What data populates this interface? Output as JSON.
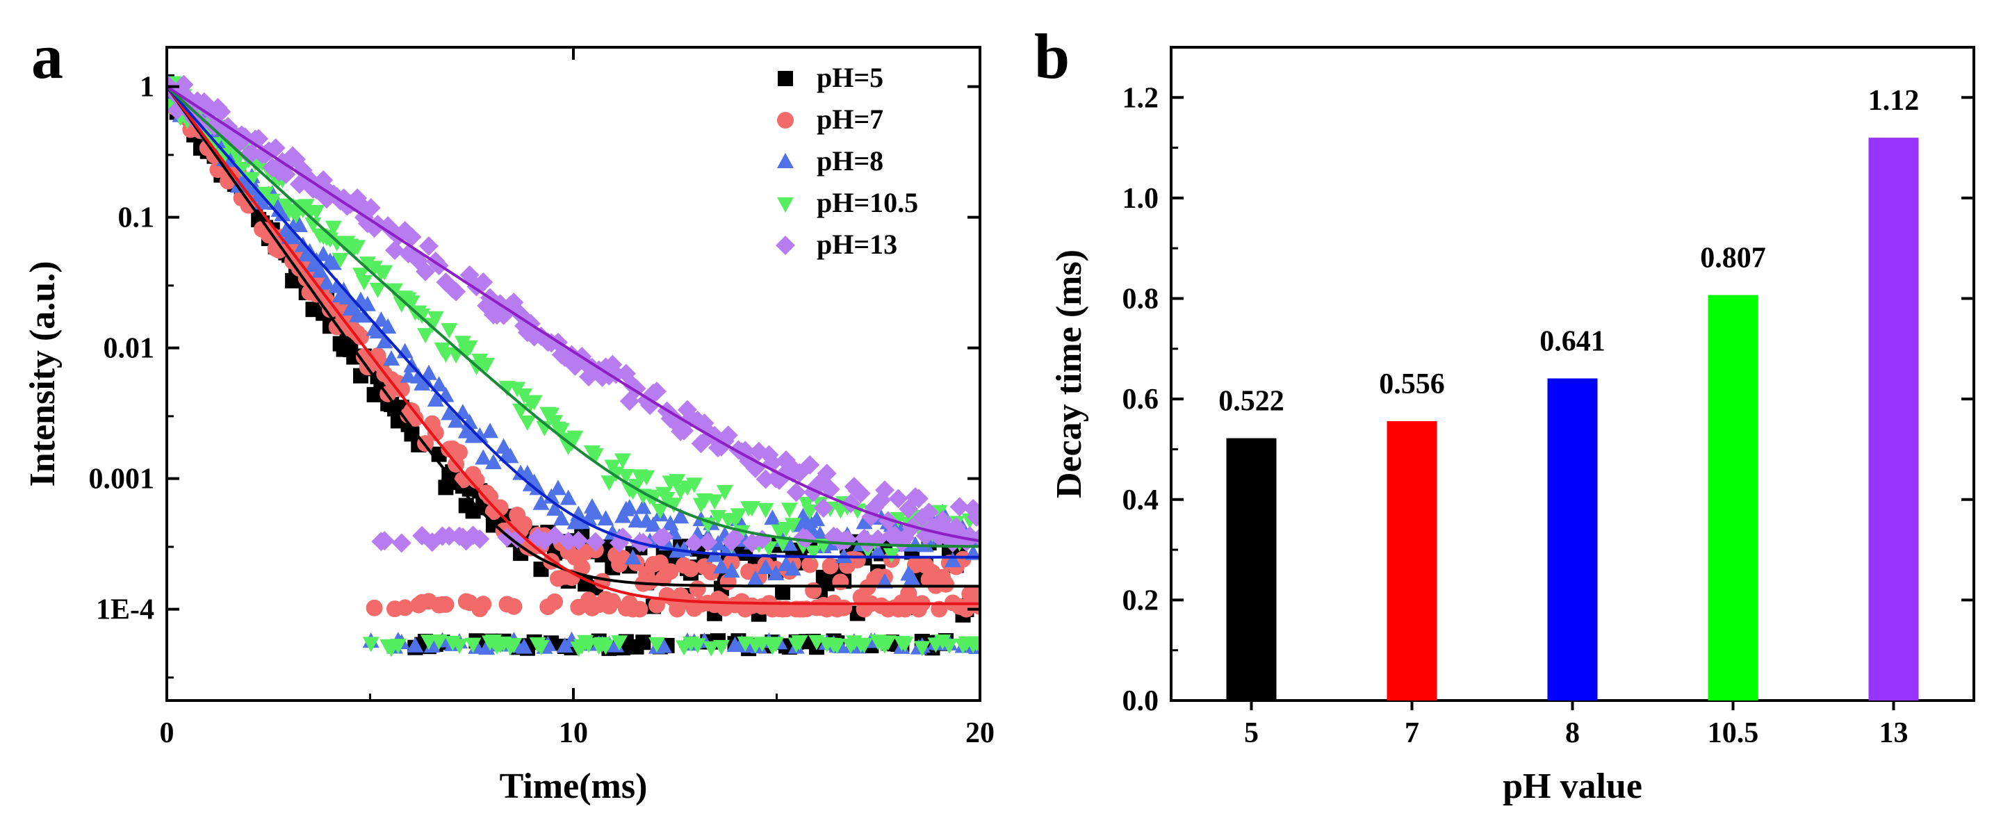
{
  "figure": {
    "panel_a_label": "a",
    "panel_b_label": "b"
  },
  "chart_data": [
    {
      "type": "scatter",
      "panel": "a",
      "title": "",
      "xlabel": "Time(ms)",
      "ylabel": "Intensity (a.u.)",
      "xscale": "linear",
      "yscale": "log",
      "xlim": [
        0,
        20
      ],
      "ylim": [
        2e-05,
        2
      ],
      "xticks": [
        0,
        10,
        20
      ],
      "xtick_labels": [
        "0",
        "10",
        "20"
      ],
      "yticks": [
        1,
        0.1,
        0.01,
        0.001,
        0.0001
      ],
      "ytick_labels": [
        "1",
        "0.1",
        "0.01",
        "0.001",
        "1E-4"
      ],
      "legend_position": "top-right",
      "series": [
        {
          "name": "pH=5",
          "label": "pH=5",
          "color": "#000000",
          "marker": "square",
          "tau_ms": 0.522,
          "floor": 0.00015,
          "noise_floor": 5e-05
        },
        {
          "name": "pH=7",
          "label": "pH=7",
          "color": "#f26a6a",
          "fit_color": "#e8141a",
          "marker": "circle",
          "tau_ms": 0.556,
          "floor": 0.00011,
          "noise_floor": 0.0001
        },
        {
          "name": "pH=8",
          "label": "pH=8",
          "color": "#4f72e8",
          "fit_color": "#0a23c9",
          "marker": "triangle-up",
          "tau_ms": 0.641,
          "floor": 0.00025,
          "noise_floor": 5e-05
        },
        {
          "name": "pH=10.5",
          "label": "pH=10.5",
          "color": "#55ee5e",
          "fit_color": "#1a8a3a",
          "marker": "triangle-down",
          "tau_ms": 0.807,
          "floor": 0.0003,
          "noise_floor": 5e-05
        },
        {
          "name": "pH=13",
          "label": "pH=13",
          "color": "#b77cf0",
          "fit_color": "#8e1fc4",
          "marker": "diamond",
          "tau_ms": 1.12,
          "floor": 0.00025,
          "noise_floor": 0.00032
        }
      ]
    },
    {
      "type": "bar",
      "panel": "b",
      "title": "",
      "xlabel": "pH value",
      "ylabel": "Decay time (ms)",
      "ylim": [
        0,
        1.3
      ],
      "yticks": [
        0.0,
        0.2,
        0.4,
        0.6,
        0.8,
        1.0,
        1.2
      ],
      "ytick_labels": [
        "0.0",
        "0.2",
        "0.4",
        "0.6",
        "0.8",
        "1.0",
        "1.2"
      ],
      "categories": [
        "5",
        "7",
        "8",
        "10.5",
        "13"
      ],
      "values": [
        0.522,
        0.556,
        0.641,
        0.807,
        1.12
      ],
      "value_labels": [
        "0.522",
        "0.556",
        "0.641",
        "0.807",
        "1.12"
      ],
      "colors": [
        "#000000",
        "#ff0000",
        "#0000ff",
        "#00ff00",
        "#9933ff"
      ]
    }
  ]
}
